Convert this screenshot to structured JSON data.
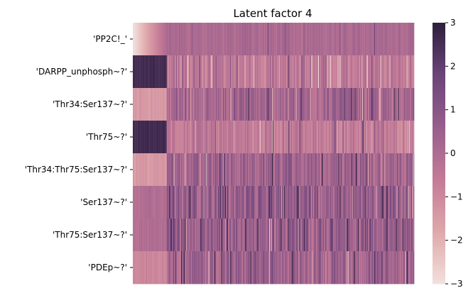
{
  "chart_data": {
    "type": "heatmap",
    "title": "Latent factor 4",
    "xlabel": "",
    "ylabel": "",
    "x_tick_labels": [],
    "rows": [
      {
        "name": "'PP2C!_'",
        "low": 0.05,
        "base": 0.05,
        "noise": 0.35
      },
      {
        "name": "'DARPP_unphosph~?'",
        "low": 2.6,
        "base": -0.55,
        "noise": 0.7
      },
      {
        "name": "'Thr34:Ser137~?'",
        "low": -1.4,
        "base": 0.2,
        "noise": 0.9
      },
      {
        "name": "'Thr75~?'",
        "low": 2.6,
        "base": -0.6,
        "noise": 0.7
      },
      {
        "name": "'Thr34:Thr75:Ser137~?'",
        "low": -1.4,
        "base": 0.3,
        "noise": 0.9
      },
      {
        "name": "'Ser137~?'",
        "low": -0.1,
        "base": 0.6,
        "noise": 1.1
      },
      {
        "name": "'Thr75:Ser137~?'",
        "low": -0.1,
        "base": 0.6,
        "noise": 1.1
      },
      {
        "name": "'PDEp~?'",
        "low": -0.9,
        "base": 0.4,
        "noise": 1.0
      }
    ],
    "n_columns": 390,
    "transition_fraction": 0.12,
    "colorbar": {
      "vmin": -3,
      "vmax": 3,
      "ticks": [
        3,
        2,
        1,
        0,
        -1,
        -2,
        -3
      ]
    },
    "colormap": [
      "#f2e0dc",
      "#dfa8ab",
      "#c47a96",
      "#975e8c",
      "#6b4479",
      "#2d1f3c"
    ],
    "grid": false,
    "legend": "colorbar-right"
  }
}
